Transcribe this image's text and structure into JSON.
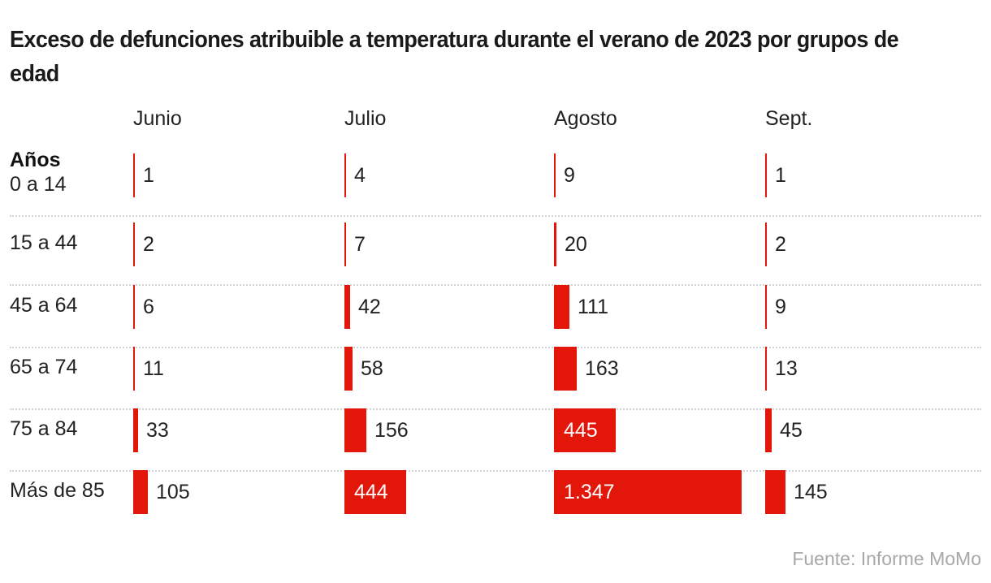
{
  "chart_data": {
    "type": "bar",
    "title": "Exceso de defunciones atribuible a temperatura durante el verano de 2023 por grupos de edad",
    "row_header": "Años",
    "categories": [
      "0 a 14",
      "15 a 44",
      "45 a 64",
      "65 a 74",
      "75 a 84",
      "Más de 85"
    ],
    "series": [
      {
        "name": "Junio",
        "values": [
          1,
          2,
          6,
          11,
          33,
          105
        ],
        "labels": [
          "1",
          "2",
          "6",
          "11",
          "33",
          "105"
        ]
      },
      {
        "name": "Julio",
        "values": [
          4,
          7,
          42,
          58,
          156,
          444
        ],
        "labels": [
          "4",
          "7",
          "42",
          "58",
          "156",
          "444"
        ]
      },
      {
        "name": "Agosto",
        "values": [
          9,
          20,
          111,
          163,
          445,
          1347
        ],
        "labels": [
          "9",
          "20",
          "111",
          "163",
          "445",
          "1.347"
        ]
      },
      {
        "name": "Sept.",
        "values": [
          1,
          2,
          9,
          13,
          45,
          145
        ],
        "labels": [
          "1",
          "2",
          "9",
          "13",
          "45",
          "145"
        ]
      }
    ],
    "xlim": [
      0,
      1347
    ],
    "bar_color": "#e2170a",
    "source": "Fuente: Informe MoMo"
  }
}
